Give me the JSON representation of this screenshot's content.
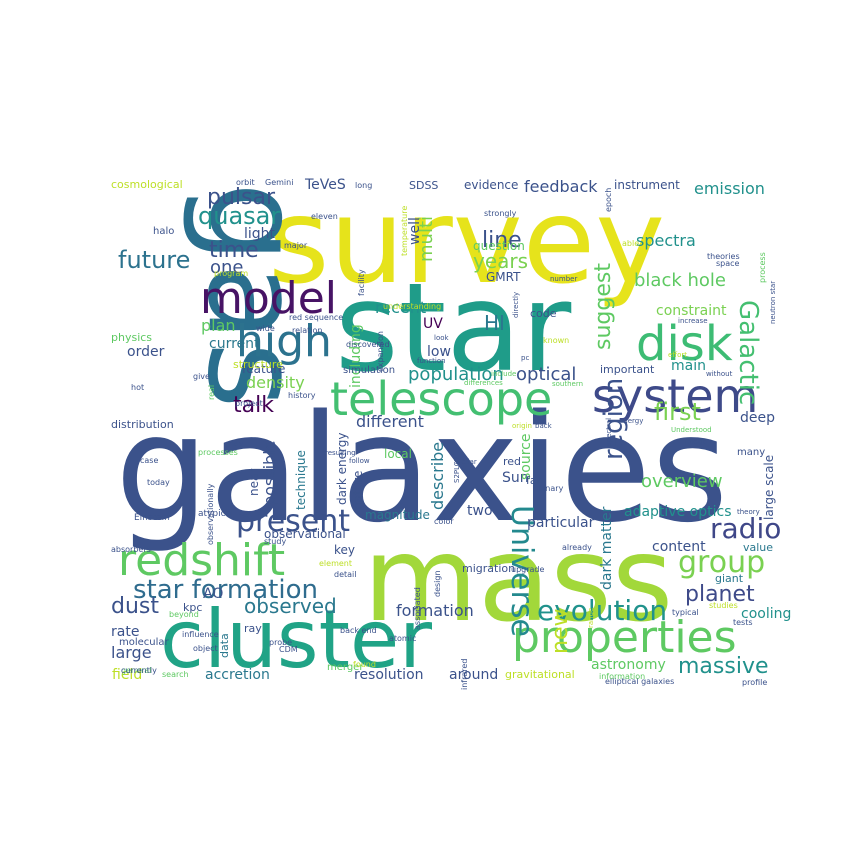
{
  "palette": [
    "#440154",
    "#3b528b",
    "#21918c",
    "#5ec962",
    "#fde725"
  ],
  "words": [
    {
      "text": "galaxies",
      "color": "#3b528b"
    },
    {
      "text": "survey",
      "color": "#e6e31b"
    },
    {
      "text": "star",
      "color": "#1f9c89"
    },
    {
      "text": "gas",
      "color": "#2a6f8e"
    },
    {
      "text": "mass",
      "color": "#a2d83a"
    },
    {
      "text": "cluster",
      "color": "#20a386"
    },
    {
      "text": "telescope",
      "color": "#43bf71"
    },
    {
      "text": "properties",
      "color": "#5ec962"
    },
    {
      "text": "system",
      "color": "#3e4a89"
    },
    {
      "text": "model",
      "color": "#471365"
    },
    {
      "text": "high",
      "color": "#2c728e"
    },
    {
      "text": "disk",
      "color": "#3dbc74"
    },
    {
      "text": "redshift",
      "color": "#5ec962"
    },
    {
      "text": "present",
      "color": "#3b528b"
    },
    {
      "text": "star formation",
      "color": "#2f6c8e"
    },
    {
      "text": "Universe",
      "color": "#23898e"
    },
    {
      "text": "evolution",
      "color": "#20928c"
    },
    {
      "text": "group",
      "color": "#7ad151"
    },
    {
      "text": "planet",
      "color": "#3e4a89"
    },
    {
      "text": "radio",
      "color": "#3f4788"
    },
    {
      "text": "Galactic",
      "color": "#44bf70"
    },
    {
      "text": "quasar",
      "color": "#21918c"
    },
    {
      "text": "pulsar",
      "color": "#3b528b"
    },
    {
      "text": "future",
      "color": "#2c728e"
    },
    {
      "text": "time",
      "color": "#3b528b"
    },
    {
      "text": "one",
      "color": "#3b528b"
    },
    {
      "text": "multi",
      "color": "#7ad151"
    },
    {
      "text": "years",
      "color": "#7ad151"
    },
    {
      "text": "line",
      "color": "#3b528b"
    },
    {
      "text": "suggest",
      "color": "#5ec962"
    },
    {
      "text": "region",
      "color": "#3b528b"
    },
    {
      "text": "first",
      "color": "#7ad151"
    },
    {
      "text": "talk",
      "color": "#440154"
    },
    {
      "text": "observed",
      "color": "#2a788e"
    },
    {
      "text": "dust",
      "color": "#3b528b"
    },
    {
      "text": "new",
      "color": "#bddf26"
    },
    {
      "text": "massive",
      "color": "#21918c"
    },
    {
      "text": "formation",
      "color": "#3b528b"
    },
    {
      "text": "overview",
      "color": "#5ec962"
    },
    {
      "text": "dark matter",
      "color": "#2a788e"
    },
    {
      "text": "describe",
      "color": "#2a788e"
    },
    {
      "text": "population",
      "color": "#21918c"
    },
    {
      "text": "optical",
      "color": "#3b528b"
    },
    {
      "text": "HI",
      "color": "#2a788e"
    },
    {
      "text": "spectra",
      "color": "#21918c"
    },
    {
      "text": "black hole",
      "color": "#5ec962"
    },
    {
      "text": "density",
      "color": "#7ad151"
    },
    {
      "text": "emission",
      "color": "#21918c"
    },
    {
      "text": "feedback",
      "color": "#3b528b"
    },
    {
      "text": "constraint",
      "color": "#7ad151"
    },
    {
      "text": "main",
      "color": "#21918c"
    },
    {
      "text": "possible",
      "color": "#3b528b"
    },
    {
      "text": "including",
      "color": "#5ec962"
    },
    {
      "text": "recent",
      "color": "#21918c"
    },
    {
      "text": "different",
      "color": "#3b528b"
    },
    {
      "text": "light",
      "color": "#3b528b"
    },
    {
      "text": "well",
      "color": "#3b528b"
    },
    {
      "text": "TeVeS",
      "color": "#3b528b"
    },
    {
      "text": "plan",
      "color": "#5ec962"
    },
    {
      "text": "current",
      "color": "#2a788e"
    },
    {
      "text": "order",
      "color": "#3b528b"
    },
    {
      "text": "UV",
      "color": "#440154"
    },
    {
      "text": "low",
      "color": "#3b528b"
    },
    {
      "text": "adaptive optics",
      "color": "#21918c"
    },
    {
      "text": "particular",
      "color": "#3b528b"
    },
    {
      "text": "cooling",
      "color": "#21918c"
    },
    {
      "text": "large",
      "color": "#3b528b"
    },
    {
      "text": "rate",
      "color": "#3b528b"
    },
    {
      "text": "resolution",
      "color": "#3b528b"
    },
    {
      "text": "around",
      "color": "#3b528b"
    },
    {
      "text": "accretion",
      "color": "#2a788e"
    },
    {
      "text": "astronomy",
      "color": "#5ec962"
    },
    {
      "text": "Sun",
      "color": "#3b528b"
    },
    {
      "text": "two",
      "color": "#3b528b"
    },
    {
      "text": "source",
      "color": "#5ec962"
    },
    {
      "text": "deep",
      "color": "#3b528b"
    },
    {
      "text": "content",
      "color": "#3b528b"
    },
    {
      "text": "magnitude",
      "color": "#2a788e"
    },
    {
      "text": "nature",
      "color": "#3b528b"
    },
    {
      "text": "dark energy",
      "color": "#3b528b"
    },
    {
      "text": "technique",
      "color": "#2a788e"
    },
    {
      "text": "near",
      "color": "#3b528b"
    },
    {
      "text": "feature",
      "color": "#3b528b"
    },
    {
      "text": "observational",
      "color": "#3b528b"
    },
    {
      "text": "AO",
      "color": "#3b528b"
    },
    {
      "text": "key",
      "color": "#3b528b"
    },
    {
      "text": "field",
      "color": "#bddf26"
    },
    {
      "text": "large scale",
      "color": "#3b528b"
    },
    {
      "text": "GMRT",
      "color": "#3b528b"
    },
    {
      "text": "question",
      "color": "#5ec962"
    },
    {
      "text": "evidence",
      "color": "#3b528b"
    },
    {
      "text": "instrument",
      "color": "#3b528b"
    },
    {
      "text": "SDSS",
      "color": "#3b528b"
    },
    {
      "text": "cosmological",
      "color": "#bddf26"
    },
    {
      "text": "structure",
      "color": "#bddf26"
    },
    {
      "text": "distribution",
      "color": "#3b528b"
    },
    {
      "text": "local",
      "color": "#5ec962"
    },
    {
      "text": "red",
      "color": "#3b528b"
    },
    {
      "text": "far",
      "color": "#3b528b"
    },
    {
      "text": "kpc",
      "color": "#3b528b"
    },
    {
      "text": "data",
      "color": "#2a788e"
    },
    {
      "text": "migration",
      "color": "#3b528b"
    },
    {
      "text": "code",
      "color": "#3b528b"
    },
    {
      "text": "important",
      "color": "#3b528b"
    },
    {
      "text": "gravitational",
      "color": "#bddf26"
    },
    {
      "text": "value",
      "color": "#2a788e"
    },
    {
      "text": "giant",
      "color": "#2a788e"
    },
    {
      "text": "molecular",
      "color": "#3b528b"
    },
    {
      "text": "ray",
      "color": "#3b528b"
    },
    {
      "text": "physics",
      "color": "#5ec962"
    },
    {
      "text": "halo",
      "color": "#3b528b"
    },
    {
      "text": "Einstein",
      "color": "#3b528b"
    },
    {
      "text": "simulation",
      "color": "#3b528b"
    },
    {
      "text": "atypical",
      "color": "#3b528b"
    },
    {
      "text": "many",
      "color": "#3b528b"
    },
    {
      "text": "elliptical galaxies",
      "color": "#3b528b"
    },
    {
      "text": "binary",
      "color": "#3b528b"
    },
    {
      "text": "color",
      "color": "#3b528b"
    },
    {
      "text": "infrared",
      "color": "#3b528b"
    },
    {
      "text": "CDM",
      "color": "#3b528b"
    },
    {
      "text": "object",
      "color": "#3b528b"
    },
    {
      "text": "merger",
      "color": "#5ec962"
    },
    {
      "text": "atomic",
      "color": "#3b528b"
    },
    {
      "text": "back end",
      "color": "#3b528b"
    },
    {
      "text": "probe",
      "color": "#3b528b"
    },
    {
      "text": "influence",
      "color": "#3b528b"
    },
    {
      "text": "search",
      "color": "#5ec962"
    },
    {
      "text": "information",
      "color": "#5ec962"
    },
    {
      "text": "typical",
      "color": "#3b528b"
    },
    {
      "text": "tests",
      "color": "#3b528b"
    },
    {
      "text": "studies",
      "color": "#bddf26"
    },
    {
      "text": "profile",
      "color": "#3b528b"
    },
    {
      "text": "upgrade",
      "color": "#3b528b"
    },
    {
      "text": "already",
      "color": "#3b528b"
    },
    {
      "text": "associated",
      "color": "#3b528b"
    },
    {
      "text": "design",
      "color": "#3b528b"
    },
    {
      "text": "absorbers",
      "color": "#3b528b"
    },
    {
      "text": "study",
      "color": "#3b528b"
    },
    {
      "text": "element",
      "color": "#bddf26"
    },
    {
      "text": "detail",
      "color": "#3b528b"
    },
    {
      "text": "found",
      "color": "#bddf26"
    },
    {
      "text": "general",
      "color": "#5ec962"
    },
    {
      "text": "currently",
      "color": "#3b528b"
    },
    {
      "text": "beyond",
      "color": "#5ec962"
    },
    {
      "text": "today",
      "color": "#3b528b"
    },
    {
      "text": "case",
      "color": "#3b528b"
    },
    {
      "text": "processes",
      "color": "#5ec962"
    },
    {
      "text": "may",
      "color": "#3b528b"
    },
    {
      "text": "observationally",
      "color": "#3b528b"
    },
    {
      "text": "hot",
      "color": "#3b528b"
    },
    {
      "text": "give",
      "color": "#3b528b"
    },
    {
      "text": "real",
      "color": "#5ec962"
    },
    {
      "text": "project",
      "color": "#3b528b"
    },
    {
      "text": "history",
      "color": "#3b528b"
    },
    {
      "text": "wide",
      "color": "#3b528b"
    },
    {
      "text": "relation",
      "color": "#3b528b"
    },
    {
      "text": "red sequence",
      "color": "#3b528b"
    },
    {
      "text": "discovered",
      "color": "#3b528b"
    },
    {
      "text": "expansion",
      "color": "#3b528b"
    },
    {
      "text": "understanding",
      "color": "#bddf26"
    },
    {
      "text": "facility",
      "color": "#3b528b"
    },
    {
      "text": "program",
      "color": "#bddf26"
    },
    {
      "text": "major",
      "color": "#3b528b"
    },
    {
      "text": "eleven",
      "color": "#3b528b"
    },
    {
      "text": "orbit",
      "color": "#3b528b"
    },
    {
      "text": "Gemini",
      "color": "#3b528b"
    },
    {
      "text": "long",
      "color": "#3b528b"
    },
    {
      "text": "temperature",
      "color": "#bddf26"
    },
    {
      "text": "strongly",
      "color": "#3b528b"
    },
    {
      "text": "epoch",
      "color": "#3b528b"
    },
    {
      "text": "able",
      "color": "#bddf26"
    },
    {
      "text": "theories",
      "color": "#3b528b"
    },
    {
      "text": "space",
      "color": "#3b528b"
    },
    {
      "text": "process",
      "color": "#5ec962"
    },
    {
      "text": "neutron star",
      "color": "#3b528b"
    },
    {
      "text": "number",
      "color": "#3b528b"
    },
    {
      "text": "directly",
      "color": "#3b528b"
    },
    {
      "text": "pc",
      "color": "#3b528b"
    },
    {
      "text": "known",
      "color": "#bddf26"
    },
    {
      "text": "include",
      "color": "#5ec962"
    },
    {
      "text": "function",
      "color": "#3b528b"
    },
    {
      "text": "differences",
      "color": "#5ec962"
    },
    {
      "text": "look",
      "color": "#3b528b"
    },
    {
      "text": "increase",
      "color": "#3b528b"
    },
    {
      "text": "effort",
      "color": "#bddf26"
    },
    {
      "text": "without",
      "color": "#3b528b"
    },
    {
      "text": "southern",
      "color": "#5ec962"
    },
    {
      "text": "stellar",
      "color": "#3b528b"
    },
    {
      "text": "origin",
      "color": "#bddf26"
    },
    {
      "text": "back",
      "color": "#3b528b"
    },
    {
      "text": "resulting",
      "color": "#3b528b"
    },
    {
      "text": "follow",
      "color": "#3b528b"
    },
    {
      "text": "S2PLOT",
      "color": "#3b528b"
    },
    {
      "text": "energy",
      "color": "#3b528b"
    },
    {
      "text": "spectral",
      "color": "#3b528b"
    },
    {
      "text": "Understood",
      "color": "#5ec962"
    },
    {
      "text": "image",
      "color": "#3b528b"
    },
    {
      "text": "theory",
      "color": "#3b528b"
    },
    {
      "text": "range",
      "color": "#bddf26"
    }
  ]
}
